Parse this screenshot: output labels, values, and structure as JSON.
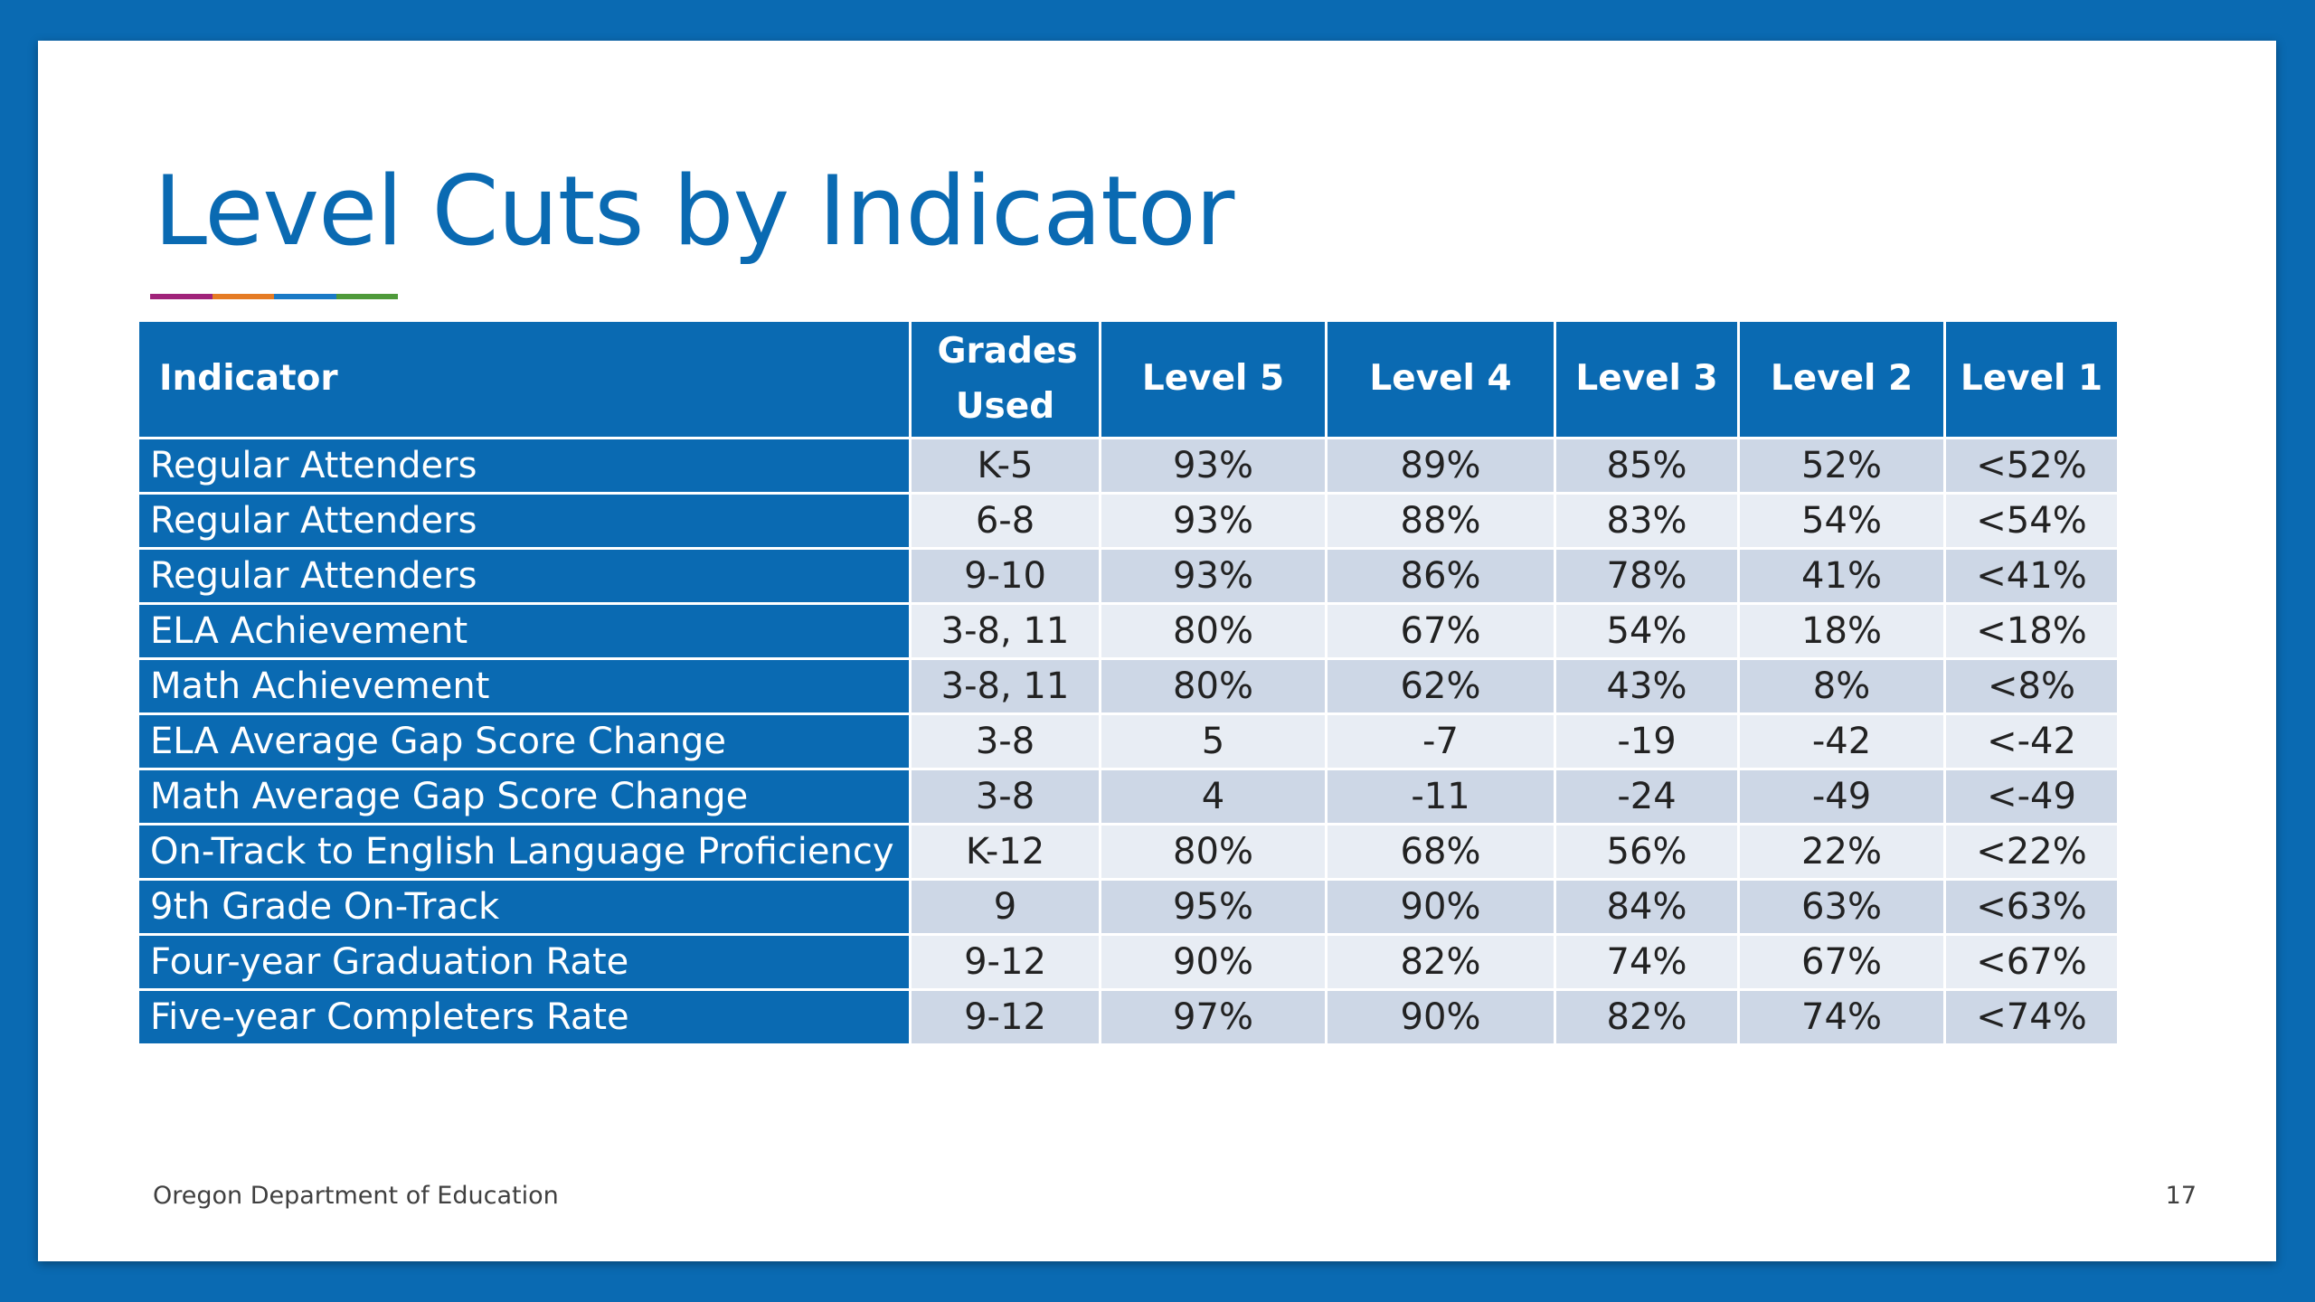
{
  "slide": {
    "title": "Level Cuts by Indicator",
    "accent_colors": [
      "#a0237a",
      "#e57b24",
      "#1a7ac6",
      "#4e9a3a"
    ],
    "footer_org": "Oregon Department of Education",
    "page_number": "17"
  },
  "table": {
    "columns": [
      "Indicator",
      "Grades Used",
      "Level 5",
      "Level 4",
      "Level 3",
      "Level 2",
      "Level 1"
    ],
    "rows": [
      [
        "Regular Attenders",
        "K-5",
        "93%",
        "89%",
        "85%",
        "52%",
        "<52%"
      ],
      [
        "Regular Attenders",
        "6-8",
        "93%",
        "88%",
        "83%",
        "54%",
        "<54%"
      ],
      [
        "Regular Attenders",
        "9-10",
        "93%",
        "86%",
        "78%",
        "41%",
        "<41%"
      ],
      [
        "ELA Achievement",
        "3-8, 11",
        "80%",
        "67%",
        "54%",
        "18%",
        "<18%"
      ],
      [
        "Math Achievement",
        "3-8, 11",
        "80%",
        "62%",
        "43%",
        "8%",
        "<8%"
      ],
      [
        "ELA Average Gap Score Change",
        "3-8",
        "5",
        "-7",
        "-19",
        "-42",
        "<-42"
      ],
      [
        "Math Average Gap Score Change",
        "3-8",
        "4",
        "-11",
        "-24",
        "-49",
        "<-49"
      ],
      [
        "On-Track to English Language Proficiency",
        "K-12",
        "80%",
        "68%",
        "56%",
        "22%",
        "<22%"
      ],
      [
        "9th Grade On-Track",
        "9",
        "95%",
        "90%",
        "84%",
        "63%",
        "<63%"
      ],
      [
        "Four-year Graduation Rate",
        "9-12",
        "90%",
        "82%",
        "74%",
        "67%",
        "<67%"
      ],
      [
        "Five-year Completers Rate",
        "9-12",
        "97%",
        "90%",
        "82%",
        "74%",
        "<74%"
      ]
    ]
  },
  "colors": {
    "brand_blue": "#0a6ab2",
    "row_shade_dark": "#cdd7e6",
    "row_shade_light": "#e8edf4"
  }
}
